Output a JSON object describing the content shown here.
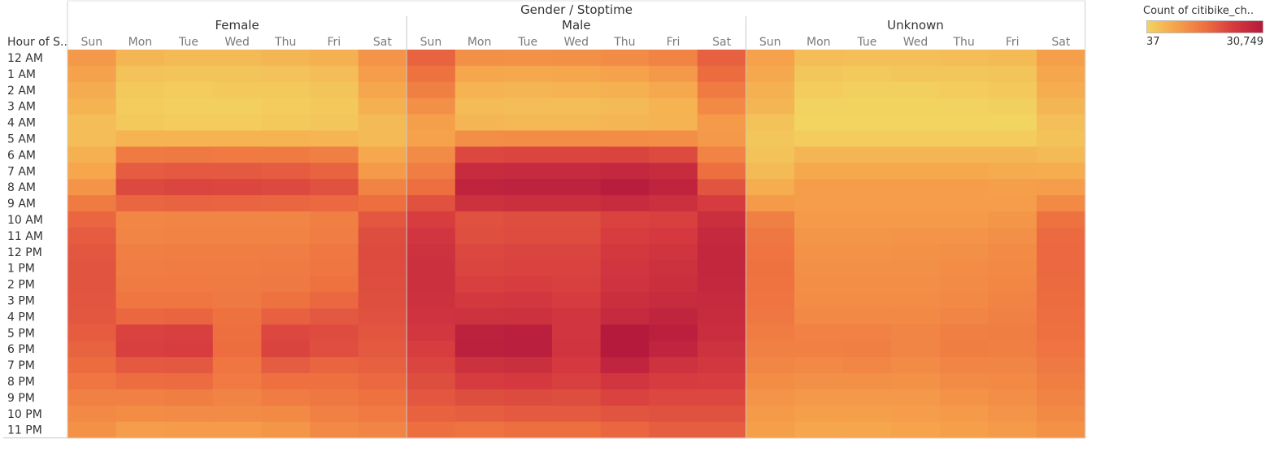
{
  "chart_data": {
    "type": "heatmap",
    "title": "Gender / Stoptime",
    "row_header": "Hour of S..",
    "rows": [
      "12 AM",
      "1 AM",
      "2 AM",
      "3 AM",
      "4 AM",
      "5 AM",
      "6 AM",
      "7 AM",
      "8 AM",
      "9 AM",
      "10 AM",
      "11 AM",
      "12 PM",
      "1 PM",
      "2 PM",
      "3 PM",
      "4 PM",
      "5 PM",
      "6 PM",
      "7 PM",
      "8 PM",
      "9 PM",
      "10 PM",
      "11 PM"
    ],
    "days": [
      "Sun",
      "Mon",
      "Tue",
      "Wed",
      "Thu",
      "Fri",
      "Sat"
    ],
    "groups": [
      {
        "name": "Female",
        "values": [
          [
            2000,
            700,
            600,
            600,
            700,
            900,
            2200
          ],
          [
            1500,
            400,
            350,
            350,
            400,
            500,
            1700
          ],
          [
            1100,
            250,
            200,
            250,
            250,
            350,
            1300
          ],
          [
            800,
            200,
            150,
            150,
            200,
            250,
            900
          ],
          [
            500,
            250,
            200,
            200,
            250,
            300,
            600
          ],
          [
            500,
            800,
            800,
            800,
            800,
            750,
            600
          ],
          [
            900,
            4200,
            4400,
            4300,
            4200,
            3800,
            1200
          ],
          [
            1300,
            7800,
            8200,
            8000,
            7800,
            6800,
            1900
          ],
          [
            2200,
            10800,
            11500,
            11200,
            10800,
            9500,
            3500
          ],
          [
            4200,
            6500,
            6800,
            6700,
            6500,
            6200,
            5500
          ],
          [
            6500,
            3200,
            3300,
            3300,
            3300,
            3800,
            8500
          ],
          [
            7800,
            3300,
            3400,
            3400,
            3500,
            4000,
            10000
          ],
          [
            8500,
            3800,
            3900,
            3900,
            4000,
            4600,
            10500
          ],
          [
            9000,
            4000,
            4100,
            4100,
            4200,
            4800,
            10300
          ],
          [
            9000,
            4200,
            4300,
            4200,
            4400,
            5200,
            10000
          ],
          [
            8800,
            4700,
            4800,
            4400,
            5200,
            6300,
            9700
          ],
          [
            8500,
            6300,
            6600,
            5100,
            7100,
            8400,
            9300
          ],
          [
            7800,
            12000,
            12500,
            5500,
            11000,
            10200,
            8700
          ],
          [
            6800,
            12500,
            13000,
            5700,
            11800,
            9700,
            8000
          ],
          [
            5800,
            8200,
            8400,
            4800,
            7700,
            6600,
            7200
          ],
          [
            4700,
            5700,
            5900,
            4300,
            5400,
            5300,
            6200
          ],
          [
            3700,
            3700,
            3900,
            3400,
            4100,
            4500,
            5200
          ],
          [
            3000,
            2700,
            2800,
            2800,
            3000,
            3700,
            4300
          ],
          [
            2400,
            1700,
            1800,
            1800,
            2100,
            3000,
            3300
          ]
        ]
      },
      {
        "name": "Male",
        "values": [
          [
            6800,
            2500,
            2400,
            2500,
            2800,
            3500,
            7200
          ],
          [
            5200,
            1300,
            1200,
            1300,
            1500,
            2000,
            5800
          ],
          [
            3800,
            800,
            700,
            800,
            900,
            1200,
            4200
          ],
          [
            2500,
            550,
            500,
            500,
            600,
            800,
            2900
          ],
          [
            1600,
            700,
            650,
            650,
            700,
            800,
            1900
          ],
          [
            1500,
            2600,
            2700,
            2700,
            2700,
            2600,
            2000
          ],
          [
            2800,
            11000,
            11500,
            11500,
            11800,
            10500,
            3500
          ],
          [
            4000,
            20500,
            21000,
            21000,
            22000,
            20000,
            5500
          ],
          [
            5500,
            24500,
            25500,
            25500,
            28500,
            24500,
            9000
          ],
          [
            9500,
            17500,
            18500,
            18500,
            20000,
            18000,
            13500
          ],
          [
            13000,
            9500,
            10000,
            10000,
            12000,
            12500,
            18500
          ],
          [
            15500,
            9800,
            10200,
            10300,
            13000,
            14000,
            21500
          ],
          [
            17000,
            11000,
            11500,
            11500,
            14500,
            16000,
            22500
          ],
          [
            18000,
            11500,
            12000,
            12000,
            15500,
            17500,
            22500
          ],
          [
            18000,
            12500,
            13000,
            12500,
            16500,
            18500,
            22000
          ],
          [
            17500,
            14500,
            15000,
            13500,
            18500,
            20500,
            21000
          ],
          [
            16500,
            17000,
            17500,
            15500,
            21000,
            23500,
            20500
          ],
          [
            15000,
            26000,
            27000,
            15500,
            30749,
            27000,
            19000
          ],
          [
            13000,
            26500,
            27500,
            16000,
            30500,
            24000,
            17000
          ],
          [
            11500,
            17500,
            18500,
            14000,
            24000,
            17000,
            15000
          ],
          [
            10000,
            13500,
            14000,
            12500,
            15500,
            13500,
            13000
          ],
          [
            8500,
            10000,
            10500,
            10000,
            12000,
            11000,
            11000
          ],
          [
            7000,
            7500,
            8000,
            8000,
            9000,
            9500,
            9500
          ],
          [
            5500,
            5000,
            5500,
            5500,
            6500,
            7500,
            7500
          ]
        ]
      },
      {
        "name": "Unknown",
        "values": [
          [
            1500,
            500,
            450,
            450,
            500,
            600,
            1600
          ],
          [
            1200,
            300,
            250,
            300,
            300,
            350,
            1300
          ],
          [
            900,
            200,
            150,
            150,
            200,
            250,
            1000
          ],
          [
            700,
            100,
            80,
            80,
            100,
            120,
            700
          ],
          [
            400,
            40,
            37,
            37,
            40,
            60,
            450
          ],
          [
            300,
            200,
            200,
            200,
            200,
            200,
            400
          ],
          [
            400,
            700,
            700,
            700,
            700,
            700,
            600
          ],
          [
            600,
            1200,
            1200,
            1200,
            1200,
            1100,
            1000
          ],
          [
            1000,
            1700,
            1700,
            1700,
            1700,
            1600,
            1700
          ],
          [
            1900,
            1700,
            1700,
            1700,
            1700,
            1700,
            2900
          ],
          [
            3800,
            1900,
            1900,
            1900,
            1900,
            2100,
            5200
          ],
          [
            4600,
            2100,
            2100,
            2200,
            2200,
            2500,
            6000
          ],
          [
            4900,
            2300,
            2300,
            2400,
            2500,
            2800,
            6200
          ],
          [
            5100,
            2500,
            2500,
            2500,
            2700,
            3000,
            6200
          ],
          [
            5000,
            2600,
            2600,
            2600,
            2800,
            3200,
            6000
          ],
          [
            4900,
            2700,
            2700,
            2700,
            3000,
            3400,
            5800
          ],
          [
            4500,
            3000,
            3000,
            3000,
            3300,
            3700,
            5600
          ],
          [
            4100,
            3600,
            3600,
            3300,
            3800,
            3900,
            5300
          ],
          [
            3700,
            3700,
            3800,
            3300,
            3900,
            3800,
            4900
          ],
          [
            3200,
            3000,
            3100,
            2800,
            3300,
            3300,
            4400
          ],
          [
            2700,
            2500,
            2500,
            2400,
            2800,
            3000,
            3900
          ],
          [
            2200,
            2000,
            2000,
            2000,
            2300,
            2600,
            3400
          ],
          [
            1900,
            1600,
            1600,
            1700,
            1900,
            2200,
            2900
          ],
          [
            1600,
            1300,
            1300,
            1400,
            1600,
            1900,
            2400
          ]
        ]
      }
    ],
    "legend": {
      "title": "Count of citibike_ch..",
      "min": 37,
      "max": 30749,
      "min_label": "37",
      "max_label": "30,749",
      "colors": [
        "#f2d461",
        "#f6a24b",
        "#ee7040",
        "#d5393f",
        "#b51a3d"
      ]
    }
  }
}
